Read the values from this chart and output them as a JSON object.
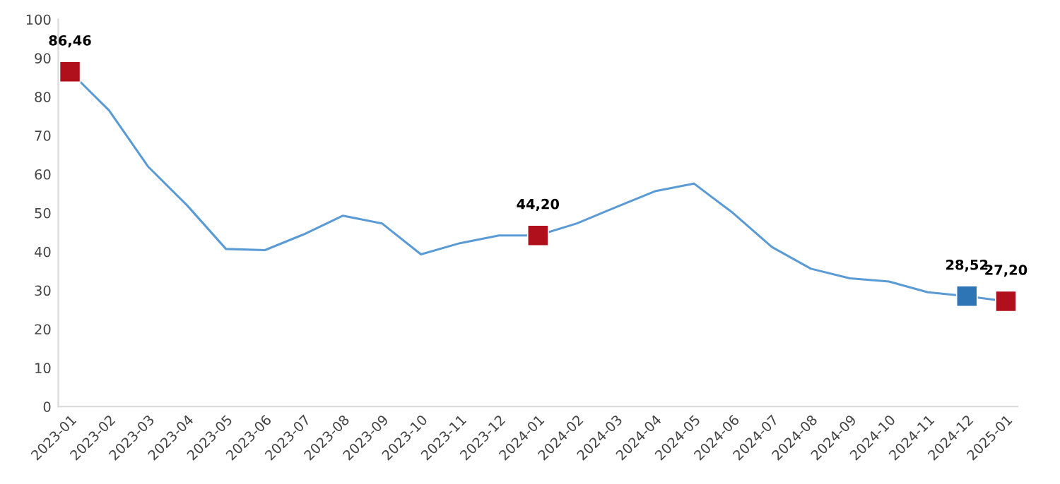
{
  "chart_data": {
    "type": "line",
    "categories": [
      "2023-01",
      "2023-02",
      "2023-03",
      "2023-04",
      "2023-05",
      "2023-06",
      "2023-07",
      "2023-08",
      "2023-09",
      "2023-10",
      "2023-11",
      "2023-12",
      "2024-01",
      "2024-02",
      "2024-03",
      "2024-04",
      "2024-05",
      "2024-06",
      "2024-07",
      "2024-08",
      "2024-09",
      "2024-10",
      "2024-11",
      "2024-12",
      "2025-01"
    ],
    "series": [
      {
        "color": "#5b9bd5",
        "values": [
          86.5,
          76.5,
          62,
          52,
          40.7,
          40.4,
          44.5,
          49.3,
          47.3,
          39.3,
          42.2,
          44.2,
          44.2,
          47.3,
          51.5,
          55.6,
          57.6,
          50.0,
          41.2,
          35.6,
          33.1,
          32.3,
          29.5,
          28.5,
          27.2
        ]
      },
      {
        "type": "scatter",
        "marker": "square",
        "color": "#b0101c",
        "values": [
          86.46,
          null,
          null,
          null,
          null,
          null,
          null,
          null,
          null,
          null,
          null,
          null,
          44.2,
          null,
          null,
          null,
          null,
          null,
          null,
          null,
          null,
          null,
          null,
          null,
          27.2
        ],
        "value_labels": [
          "86,46",
          null,
          null,
          null,
          null,
          null,
          null,
          null,
          null,
          null,
          null,
          null,
          "44,20",
          null,
          null,
          null,
          null,
          null,
          null,
          null,
          null,
          null,
          null,
          null,
          "27,20"
        ]
      },
      {
        "type": "scatter",
        "marker": "square",
        "color": "#2e75b6",
        "values": [
          null,
          null,
          null,
          null,
          null,
          null,
          null,
          null,
          null,
          null,
          null,
          null,
          null,
          null,
          null,
          null,
          null,
          null,
          null,
          null,
          null,
          null,
          null,
          28.52,
          null
        ],
        "value_labels": [
          null,
          null,
          null,
          null,
          null,
          null,
          null,
          null,
          null,
          null,
          null,
          null,
          null,
          null,
          null,
          null,
          null,
          null,
          null,
          null,
          null,
          null,
          null,
          "28,52",
          null
        ]
      }
    ],
    "ylim": [
      0,
      100
    ],
    "yticks": [
      0,
      10,
      20,
      30,
      40,
      50,
      60,
      70,
      80,
      90,
      100
    ],
    "grid": false,
    "legend": false
  }
}
